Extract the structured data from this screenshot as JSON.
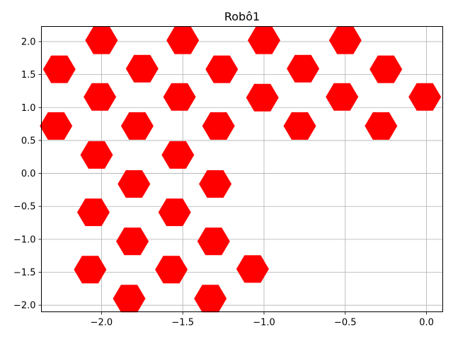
{
  "chart_data": {
    "type": "scatter",
    "title": "Robô1",
    "xlabel": "",
    "ylabel": "",
    "xlim": [
      -2.37,
      0.1
    ],
    "ylim": [
      -2.1,
      2.23
    ],
    "grid": true,
    "marker": "hexagon",
    "color": "#ff0000",
    "x_ticks": [
      {
        "value": -2.0,
        "label": "−2.0"
      },
      {
        "value": -1.5,
        "label": "−1.5"
      },
      {
        "value": -1.0,
        "label": "−1.0"
      },
      {
        "value": -0.5,
        "label": "−0.5"
      },
      {
        "value": 0.0,
        "label": "0.0"
      }
    ],
    "y_ticks": [
      {
        "value": -2.0,
        "label": "−2.0"
      },
      {
        "value": -1.5,
        "label": "−1.5"
      },
      {
        "value": -1.0,
        "label": "−1.0"
      },
      {
        "value": -0.5,
        "label": "−0.5"
      },
      {
        "value": 0.0,
        "label": "0.0"
      },
      {
        "value": 0.5,
        "label": "0.5"
      },
      {
        "value": 1.0,
        "label": "1.0"
      },
      {
        "value": 1.5,
        "label": "1.5"
      },
      {
        "value": 2.0,
        "label": "2.0"
      }
    ],
    "points": [
      {
        "x": -2.0,
        "y": 2.02
      },
      {
        "x": -1.5,
        "y": 2.02
      },
      {
        "x": -1.0,
        "y": 2.02
      },
      {
        "x": -0.5,
        "y": 2.02
      },
      {
        "x": -2.26,
        "y": 1.58
      },
      {
        "x": -1.75,
        "y": 1.59
      },
      {
        "x": -1.26,
        "y": 1.58
      },
      {
        "x": -0.76,
        "y": 1.59
      },
      {
        "x": -0.25,
        "y": 1.58
      },
      {
        "x": -2.01,
        "y": 1.16
      },
      {
        "x": -1.52,
        "y": 1.16
      },
      {
        "x": -1.01,
        "y": 1.15
      },
      {
        "x": -0.52,
        "y": 1.16
      },
      {
        "x": -0.01,
        "y": 1.16
      },
      {
        "x": -2.28,
        "y": 0.72
      },
      {
        "x": -1.78,
        "y": 0.72
      },
      {
        "x": -1.28,
        "y": 0.72
      },
      {
        "x": -0.78,
        "y": 0.72
      },
      {
        "x": -0.28,
        "y": 0.72
      },
      {
        "x": -2.03,
        "y": 0.28
      },
      {
        "x": -1.53,
        "y": 0.28
      },
      {
        "x": -1.8,
        "y": -0.16
      },
      {
        "x": -1.3,
        "y": -0.16
      },
      {
        "x": -2.05,
        "y": -0.59
      },
      {
        "x": -1.55,
        "y": -0.59
      },
      {
        "x": -1.81,
        "y": -1.03
      },
      {
        "x": -1.31,
        "y": -1.03
      },
      {
        "x": -2.07,
        "y": -1.46
      },
      {
        "x": -1.57,
        "y": -1.46
      },
      {
        "x": -1.07,
        "y": -1.45
      },
      {
        "x": -1.83,
        "y": -1.9
      },
      {
        "x": -1.33,
        "y": -1.9
      }
    ]
  }
}
